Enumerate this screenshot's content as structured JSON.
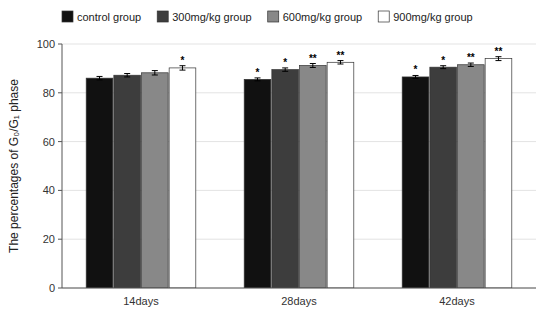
{
  "chart_data": {
    "type": "bar",
    "y_label": "The percentages of G₀/G₁ phase",
    "categories": [
      "14days",
      "28days",
      "42days"
    ],
    "series": [
      {
        "name": "control group",
        "color": "#111111",
        "values": [
          86.0,
          85.5,
          86.5
        ],
        "errors": [
          0.7,
          0.6,
          0.6
        ],
        "significance": [
          null,
          "*",
          "*"
        ]
      },
      {
        "name": "300mg/kg group",
        "color": "#3d3d3d",
        "values": [
          87.2,
          89.5,
          90.5
        ],
        "errors": [
          0.7,
          0.7,
          0.6
        ],
        "significance": [
          null,
          "*",
          "*"
        ]
      },
      {
        "name": "600mg/kg group",
        "color": "#888888",
        "values": [
          88.2,
          91.2,
          91.5
        ],
        "errors": [
          0.9,
          0.8,
          0.7
        ],
        "significance": [
          null,
          "**",
          "**"
        ]
      },
      {
        "name": "900mg/kg group",
        "color": "#ffffff",
        "values": [
          90.2,
          92.5,
          94.0
        ],
        "errors": [
          0.9,
          0.7,
          0.8
        ],
        "significance": [
          "*",
          "**",
          "**"
        ]
      }
    ],
    "ylim": [
      0,
      100
    ],
    "yticks": [
      0,
      20,
      40,
      60,
      80,
      100
    ],
    "grid": true,
    "legend": "top"
  }
}
